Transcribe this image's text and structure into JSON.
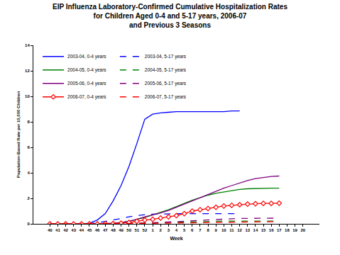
{
  "chart_data": {
    "type": "line",
    "title": "EIP Influenza Laboratory-Confirmed Cumulative Hospitalization Rates\nfor Children Aged 0-4 and 5-17 years, 2006-07\nand Previous 3 Seasons",
    "x_label": "Week",
    "y_label": "Population-Based Rate per 10,000 Children",
    "categories": [
      "40",
      "41",
      "42",
      "43",
      "44",
      "45",
      "46",
      "47",
      "48",
      "49",
      "50",
      "51",
      "52",
      "1",
      "2",
      "3",
      "4",
      "5",
      "6",
      "7",
      "8",
      "9",
      "10",
      "11",
      "12",
      "13",
      "14",
      "15",
      "16",
      "17",
      "18",
      "19",
      "20"
    ],
    "ylim": [
      0,
      14
    ],
    "yticks": [
      0,
      2,
      4,
      6,
      8,
      10,
      12,
      14
    ],
    "grid": false,
    "legend": "upper left",
    "series": [
      {
        "name": "2003-04, 0-4 years",
        "color": "#0000FF",
        "line_style": "solid",
        "values": [
          0,
          0,
          0,
          0,
          0,
          0.05,
          0.3,
          0.8,
          1.8,
          3.0,
          4.5,
          6.3,
          8.2,
          8.6,
          8.7,
          8.75,
          8.8,
          8.8,
          8.8,
          8.8,
          8.8,
          8.8,
          8.8,
          8.85,
          8.85,
          null,
          null,
          null,
          null,
          null,
          null,
          null,
          null
        ]
      },
      {
        "name": "2003-04, 5-17 years",
        "color": "#0000FF",
        "line_style": "dash",
        "values": [
          0,
          0,
          0,
          0,
          0,
          0.02,
          0.08,
          0.18,
          0.3,
          0.42,
          0.55,
          0.65,
          0.72,
          0.76,
          0.78,
          0.8,
          0.8,
          0.8,
          0.8,
          0.8,
          0.8,
          0.8,
          0.8,
          0.8,
          0.8,
          null,
          null,
          null,
          null,
          null,
          null,
          null,
          null
        ]
      },
      {
        "name": "2004-05, 0-4 years",
        "color": "#008000",
        "line_style": "solid",
        "values": [
          0,
          0,
          0,
          0,
          0,
          0,
          0,
          0.02,
          0.05,
          0.1,
          0.2,
          0.35,
          0.5,
          0.7,
          0.9,
          1.1,
          1.35,
          1.6,
          1.85,
          2.05,
          2.25,
          2.4,
          2.5,
          2.6,
          2.7,
          2.75,
          2.78,
          2.8,
          2.8,
          2.8,
          null,
          null,
          null
        ]
      },
      {
        "name": "2004-05, 5-17 years",
        "color": "#008000",
        "line_style": "dash",
        "values": [
          0,
          0,
          0,
          0,
          0,
          0,
          0,
          0,
          0,
          0,
          0.02,
          0.04,
          0.06,
          0.08,
          0.1,
          0.12,
          0.14,
          0.16,
          0.18,
          0.19,
          0.2,
          0.21,
          0.22,
          0.22,
          0.22,
          0.22,
          0.22,
          0.22,
          0.22,
          0.22,
          null,
          null,
          null
        ]
      },
      {
        "name": "2005-06, 0-4 years",
        "color": "#800080",
        "line_style": "solid",
        "values": [
          0,
          0,
          0,
          0,
          0,
          0,
          0,
          0.02,
          0.05,
          0.1,
          0.2,
          0.35,
          0.55,
          0.7,
          0.85,
          1.05,
          1.3,
          1.55,
          1.8,
          2.05,
          2.3,
          2.55,
          2.8,
          3.0,
          3.2,
          3.4,
          3.55,
          3.65,
          3.72,
          3.75,
          null,
          null,
          null
        ]
      },
      {
        "name": "2005-06, 5-17 years",
        "color": "#800080",
        "line_style": "dash",
        "values": [
          0,
          0,
          0,
          0,
          0,
          0,
          0,
          0,
          0,
          0,
          0.02,
          0.04,
          0.06,
          0.08,
          0.1,
          0.13,
          0.16,
          0.2,
          0.24,
          0.28,
          0.32,
          0.35,
          0.38,
          0.4,
          0.42,
          0.43,
          0.44,
          0.45,
          0.45,
          0.45,
          null,
          null,
          null
        ]
      },
      {
        "name": "2006-07, 0-4 years",
        "color": "#FF0000",
        "line_style": "solid",
        "marker": "diamond",
        "values": [
          0,
          0,
          0,
          0,
          0,
          0,
          0,
          0.01,
          0.02,
          0.05,
          0.1,
          0.2,
          0.3,
          0.35,
          0.45,
          0.55,
          0.65,
          0.8,
          1.0,
          1.1,
          1.2,
          1.3,
          1.4,
          1.45,
          1.5,
          1.55,
          1.58,
          1.6,
          1.6,
          1.62,
          null,
          null,
          null
        ]
      },
      {
        "name": "2006-07, 5-17 years",
        "color": "#FF0000",
        "line_style": "dash",
        "values": [
          0,
          0,
          0,
          0,
          0,
          0,
          0,
          0,
          0,
          0,
          0.01,
          0.02,
          0.03,
          0.04,
          0.05,
          0.06,
          0.07,
          0.08,
          0.09,
          0.1,
          0.11,
          0.12,
          0.13,
          0.14,
          0.15,
          0.16,
          0.17,
          0.17,
          0.18,
          0.18,
          null,
          null,
          null
        ]
      }
    ]
  }
}
